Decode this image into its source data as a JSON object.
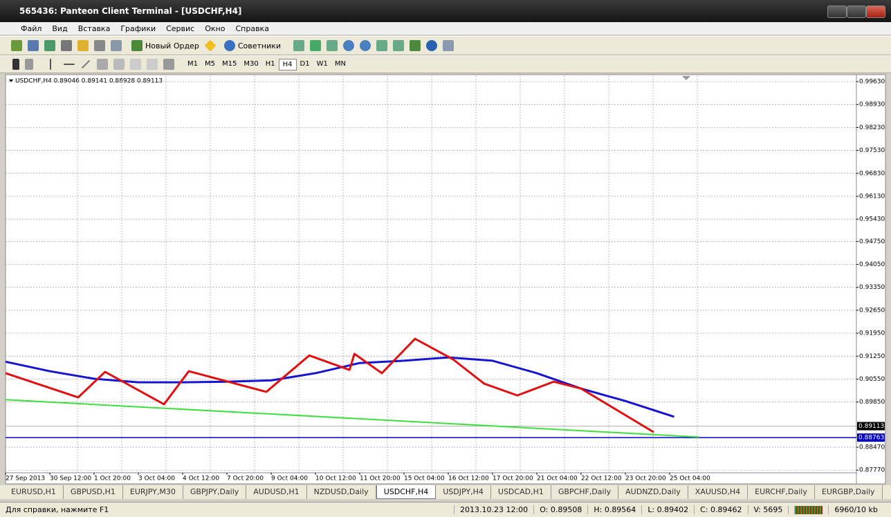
{
  "window": {
    "title": "565436: Panteon Client Terminal - [USDCHF,H4]"
  },
  "menu": [
    "Файл",
    "Вид",
    "Вставка",
    "Графики",
    "Сервис",
    "Окно",
    "Справка"
  ],
  "toolbar": {
    "new_order": "Новый Ордер",
    "experts": "Советники"
  },
  "timeframes": [
    "M1",
    "M5",
    "M15",
    "M30",
    "H1",
    "H4",
    "D1",
    "W1",
    "MN"
  ],
  "chart_data": {
    "type": "line",
    "title": "USDCHF,H4  0.89046 0.89141 0.88928 0.89113",
    "categories": [
      "27 Sep 2013",
      "30 Sep 12:00",
      "1 Oct 20:00",
      "3 Oct 04:00",
      "4 Oct 12:00",
      "7 Oct 20:00",
      "9 Oct 04:00",
      "10 Oct 12:00",
      "11 Oct 20:00",
      "15 Oct 04:00",
      "16 Oct 12:00",
      "17 Oct 20:00",
      "21 Oct 04:00",
      "22 Oct 12:00",
      "23 Oct 20:00",
      "25 Oct 04:00"
    ],
    "ylim": [
      0.8769,
      0.998
    ],
    "yticks": [
      {
        "value": 0.9963,
        "label": "0.99630"
      },
      {
        "value": 0.9893,
        "label": "0.98930"
      },
      {
        "value": 0.9823,
        "label": "0.98230"
      },
      {
        "value": 0.9753,
        "label": "0.97530"
      },
      {
        "value": 0.9683,
        "label": "0.96830"
      },
      {
        "value": 0.9613,
        "label": "0.96130"
      },
      {
        "value": 0.9543,
        "label": "0.95430"
      },
      {
        "value": 0.9475,
        "label": "0.94750"
      },
      {
        "value": 0.9405,
        "label": "0.94050"
      },
      {
        "value": 0.9335,
        "label": "0.93350"
      },
      {
        "value": 0.9265,
        "label": "0.92650"
      },
      {
        "value": 0.9195,
        "label": "0.91950"
      },
      {
        "value": 0.9125,
        "label": "0.91250"
      },
      {
        "value": 0.9055,
        "label": "0.90550"
      },
      {
        "value": 0.8985,
        "label": "0.89850"
      },
      {
        "value": 0.8847,
        "label": "0.88470"
      },
      {
        "value": 0.8777,
        "label": "0.87770"
      }
    ],
    "grid": true,
    "bid": 0.89113,
    "level": 0.88763,
    "series": [
      {
        "color": "#1414d2",
        "x": [
          0,
          1,
          2,
          3,
          4,
          5,
          6,
          7,
          8,
          9,
          10,
          11,
          12,
          13,
          14,
          15.1
        ],
        "values": [
          0.9108,
          0.9079,
          0.9056,
          0.9045,
          0.9045,
          0.9047,
          0.9051,
          0.9073,
          0.9104,
          0.9111,
          0.9121,
          0.9111,
          0.9073,
          0.9026,
          0.8988,
          0.894
        ]
      },
      {
        "color": "#e01010",
        "x": [
          0,
          1.64,
          2.25,
          3.58,
          4.14,
          5.89,
          6.86,
          7.77,
          7.88,
          8.5,
          9.25,
          10.11,
          10.81,
          11.56,
          12.38,
          13,
          14.64
        ],
        "values": [
          0.9073,
          0.8999,
          0.9077,
          0.8978,
          0.9079,
          0.9016,
          0.9127,
          0.9083,
          0.9132,
          0.9073,
          0.9178,
          0.9115,
          0.9041,
          0.9005,
          0.9047,
          0.9026,
          0.8893
        ]
      },
      {
        "color": "#3ce03c",
        "x": [
          0,
          15.66
        ],
        "values": [
          0.8992,
          0.8878
        ]
      }
    ]
  },
  "tabs": [
    "EURUSD,H1",
    "GBPUSD,H1",
    "EURJPY,M30",
    "GBPJPY,Daily",
    "AUDUSD,H1",
    "NZDUSD,Daily",
    "USDCHF,H4",
    "USDJPY,H4",
    "USDCAD,H1",
    "GBPCHF,Daily",
    "AUDNZD,Daily",
    "XAUUSD,H4",
    "EURCHF,Daily",
    "EURGBP,Daily"
  ],
  "active_tab": 6,
  "status": {
    "help": "Для справки, нажмите F1",
    "datetime": "2013.10.23 12:00",
    "open": "O: 0.89508",
    "high": "H: 0.89564",
    "low": "L: 0.89402",
    "close": "C: 0.89462",
    "volume": "V: 5695",
    "traffic": "6960/10 kb"
  }
}
